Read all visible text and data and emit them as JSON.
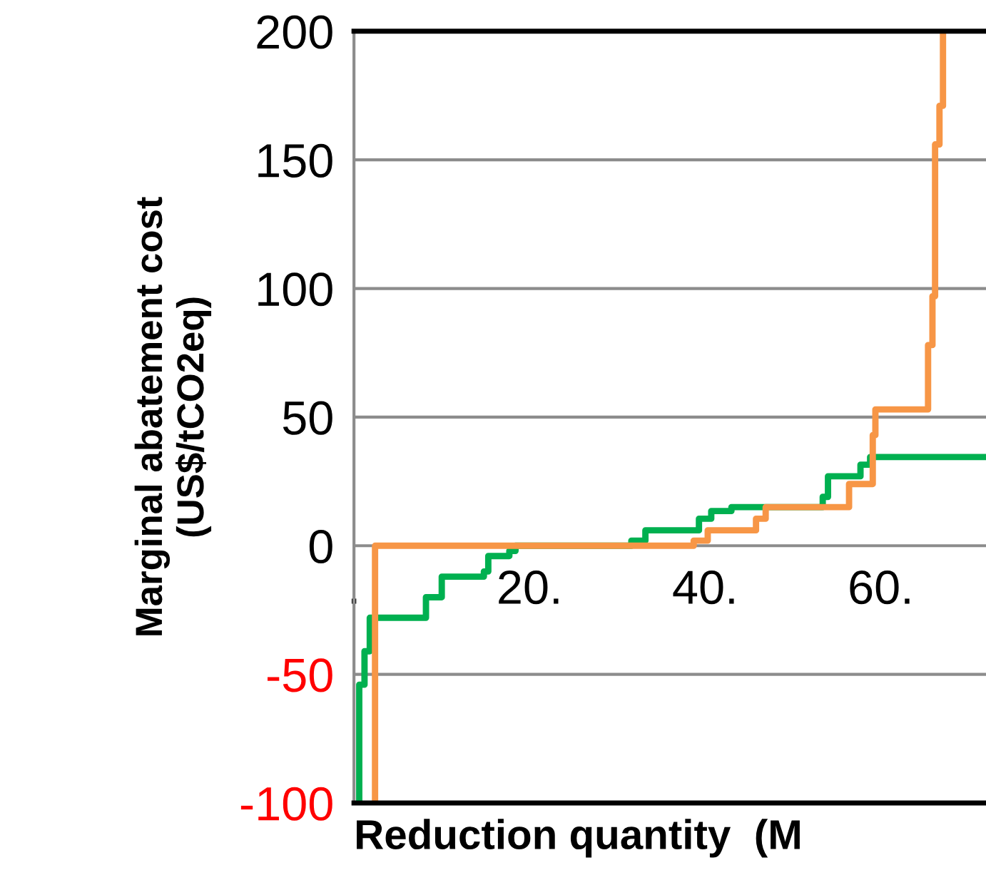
{
  "chart_data": {
    "type": "step",
    "ylabel": "Marginal abatement cost\n(US$/tCO2eq)",
    "xlabel": "Reduction quantity  (M",
    "xlim": [
      0,
      72
    ],
    "xticks": [
      {
        "value": 0,
        "label": "."
      },
      {
        "value": 20,
        "label": "20."
      },
      {
        "value": 40,
        "label": "40."
      },
      {
        "value": 60,
        "label": "60."
      }
    ],
    "ylim": [
      -100,
      200
    ],
    "yticks": [
      -100,
      -50,
      0,
      50,
      100,
      150,
      200
    ],
    "grid": "y",
    "line_style": "solid",
    "marker": "none",
    "series": [
      {
        "color": "#00b050",
        "x": [
          0.6,
          0.6,
          1.2,
          1.8,
          8.2,
          10.0,
          14.8,
          15.3,
          17.7,
          18.4,
          31.6,
          33.2,
          39.3,
          40.7,
          43.0,
          53.4,
          54.0,
          57.7,
          58.8,
          72
        ],
        "values": [
          -100,
          -54,
          -41,
          -28,
          -20,
          -12,
          -10,
          -4,
          -2,
          0,
          2,
          6,
          10.5,
          13.5,
          15,
          19,
          27,
          31.5,
          34.5,
          34.5
        ]
      },
      {
        "color": "#f79646",
        "x": [
          2.4,
          2.4,
          38.7,
          40.3,
          45.8,
          46.9,
          56.4,
          59.1,
          59.4,
          65.4,
          65.9,
          66.2,
          66.7,
          67.1
        ],
        "values": [
          -100,
          0,
          2,
          6,
          10.5,
          15,
          24,
          43,
          53,
          78,
          97,
          156,
          171,
          200
        ]
      }
    ]
  }
}
